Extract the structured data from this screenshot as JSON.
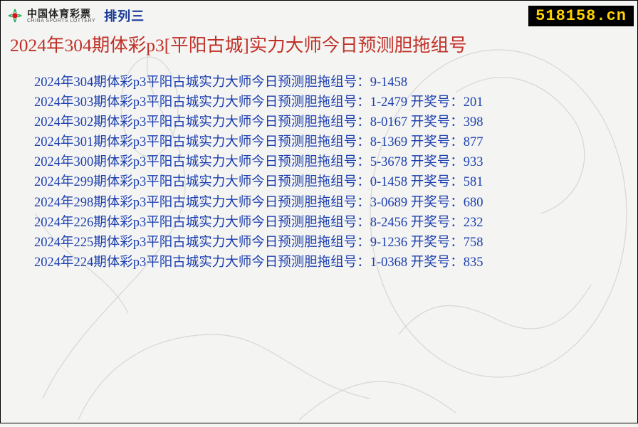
{
  "header": {
    "logo_cn": "中国体育彩票",
    "logo_en": "CHINA SPORTS LOTTERY",
    "logo_series": "排列三",
    "site_badge": "518158.cn"
  },
  "title": "2024年304期体彩p3[平阳古城]实力大师今日预测胆拖组号",
  "colors": {
    "title": "#c03028",
    "row": "#1c3fb0",
    "badge_bg": "#000000",
    "badge_fg": "#ffd400",
    "logo_series": "#1a3a9a"
  },
  "row_prefix_a": "2024年",
  "row_prefix_b": "期体彩p3平阳古城实力大师今日预测胆拖组号：",
  "draw_label": "开奖号：",
  "rows": [
    {
      "issue": "304",
      "pick": "9-1458",
      "draw": ""
    },
    {
      "issue": "303",
      "pick": "1-2479",
      "draw": "201"
    },
    {
      "issue": "302",
      "pick": "8-0167",
      "draw": "398"
    },
    {
      "issue": "301",
      "pick": "8-1369",
      "draw": "877"
    },
    {
      "issue": "300",
      "pick": "5-3678",
      "draw": "933"
    },
    {
      "issue": "299",
      "pick": "0-1458",
      "draw": "581"
    },
    {
      "issue": "298",
      "pick": "3-0689",
      "draw": "680"
    },
    {
      "issue": "226",
      "pick": "8-2456",
      "draw": "232"
    },
    {
      "issue": "225",
      "pick": "9-1236",
      "draw": "758"
    },
    {
      "issue": "224",
      "pick": "1-0368",
      "draw": "835"
    }
  ]
}
